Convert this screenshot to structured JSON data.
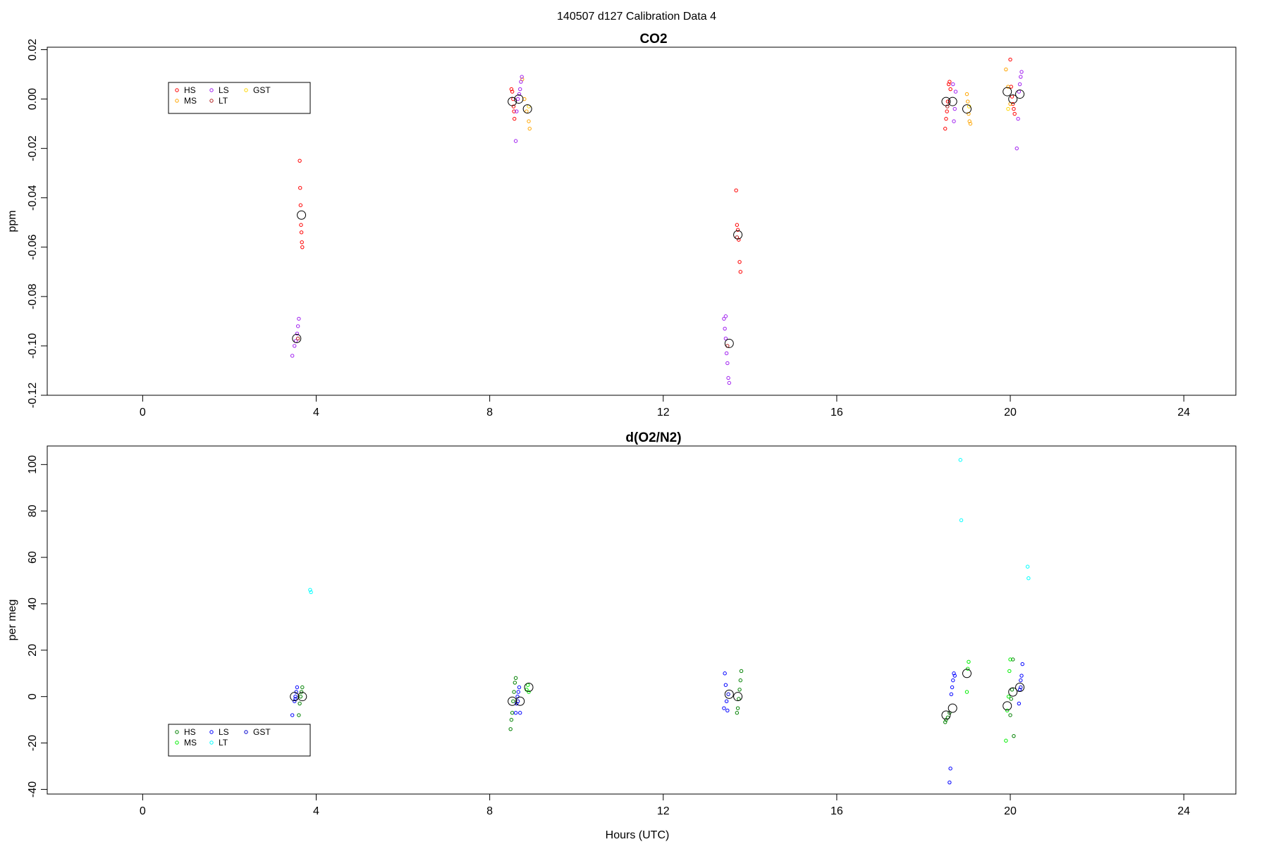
{
  "figure": {
    "title": "140507   d127   Calibration Data 4"
  },
  "chart_data": [
    {
      "type": "scatter",
      "title": "CO2",
      "xlabel": "",
      "ylabel": "ppm",
      "xlim": [
        -2.2,
        25.2
      ],
      "ylim": [
        -0.12,
        0.021
      ],
      "xticks": [
        0,
        4,
        8,
        12,
        16,
        20,
        24
      ],
      "yticks": [
        0.02,
        0.0,
        -0.02,
        -0.04,
        -0.06,
        -0.08,
        -0.1,
        -0.12
      ],
      "ytick_labels": [
        "0.02",
        "0.00",
        "-0.02",
        "-0.04",
        "-0.06",
        "-0.08",
        "-0.10",
        "-0.12"
      ],
      "grid": false,
      "legend_position": "top-left",
      "legend": [
        {
          "name": "HS",
          "color": "#ff0000"
        },
        {
          "name": "MS",
          "color": "#ffa500"
        },
        {
          "name": "LS",
          "color": "#a020f0"
        },
        {
          "name": "LT",
          "color": "#b22222"
        },
        {
          "name": "GST",
          "color": "#ffd700"
        }
      ],
      "series": [
        {
          "name": "HS",
          "color": "#ff0000",
          "points": [
            [
              3.62,
              -0.025
            ],
            [
              3.63,
              -0.036
            ],
            [
              3.64,
              -0.043
            ],
            [
              3.65,
              -0.051
            ],
            [
              3.66,
              -0.054
            ],
            [
              3.67,
              -0.058
            ],
            [
              3.68,
              -0.06
            ],
            [
              8.5,
              0.004
            ],
            [
              8.52,
              0.003
            ],
            [
              8.54,
              0.0
            ],
            [
              8.55,
              -0.003
            ],
            [
              8.56,
              -0.005
            ],
            [
              8.57,
              -0.008
            ],
            [
              13.68,
              -0.037
            ],
            [
              13.7,
              -0.051
            ],
            [
              13.72,
              -0.053
            ],
            [
              13.74,
              -0.057
            ],
            [
              13.76,
              -0.066
            ],
            [
              13.78,
              -0.07
            ],
            [
              18.5,
              -0.012
            ],
            [
              18.52,
              -0.008
            ],
            [
              18.54,
              -0.005
            ],
            [
              18.56,
              -0.001
            ],
            [
              18.58,
              0.006
            ],
            [
              18.6,
              0.007
            ],
            [
              18.62,
              0.004
            ],
            [
              20.0,
              0.016
            ],
            [
              20.02,
              0.005
            ],
            [
              20.04,
              0.001
            ],
            [
              20.06,
              -0.002
            ],
            [
              20.08,
              -0.004
            ],
            [
              20.1,
              -0.006
            ]
          ]
        },
        {
          "name": "MS",
          "color": "#ffa500",
          "points": [
            [
              8.75,
              0.008
            ],
            [
              8.8,
              0.0
            ],
            [
              8.85,
              -0.005
            ],
            [
              8.9,
              -0.009
            ],
            [
              8.92,
              -0.012
            ],
            [
              19.0,
              0.002
            ],
            [
              19.02,
              -0.001
            ],
            [
              19.04,
              -0.006
            ],
            [
              19.06,
              -0.009
            ],
            [
              19.08,
              -0.01
            ],
            [
              19.9,
              0.012
            ],
            [
              19.95,
              0.005
            ],
            [
              20.0,
              -0.002
            ]
          ]
        },
        {
          "name": "LS",
          "color": "#a020f0",
          "points": [
            [
              3.45,
              -0.104
            ],
            [
              3.5,
              -0.1
            ],
            [
              3.53,
              -0.098
            ],
            [
              3.56,
              -0.095
            ],
            [
              3.58,
              -0.092
            ],
            [
              3.6,
              -0.089
            ],
            [
              8.6,
              -0.017
            ],
            [
              8.62,
              -0.005
            ],
            [
              8.65,
              0.0
            ],
            [
              8.68,
              0.002
            ],
            [
              8.7,
              0.004
            ],
            [
              8.72,
              0.007
            ],
            [
              8.74,
              0.009
            ],
            [
              13.4,
              -0.089
            ],
            [
              13.42,
              -0.093
            ],
            [
              13.44,
              -0.097
            ],
            [
              13.46,
              -0.103
            ],
            [
              13.48,
              -0.107
            ],
            [
              13.5,
              -0.113
            ],
            [
              13.52,
              -0.115
            ],
            [
              13.44,
              -0.088
            ],
            [
              18.7,
              -0.009
            ],
            [
              18.72,
              -0.004
            ],
            [
              18.74,
              0.003
            ],
            [
              18.68,
              0.006
            ],
            [
              20.15,
              -0.02
            ],
            [
              20.18,
              -0.008
            ],
            [
              20.2,
              0.003
            ],
            [
              20.22,
              0.006
            ],
            [
              20.24,
              0.009
            ],
            [
              20.26,
              0.011
            ]
          ]
        },
        {
          "name": "LT",
          "color": "#b22222",
          "points": [
            [
              3.58,
              -0.097
            ],
            [
              13.48,
              -0.1
            ],
            [
              13.7,
              -0.056
            ],
            [
              18.55,
              -0.003
            ]
          ]
        },
        {
          "name": "GST",
          "color": "#ffd700",
          "points": [
            [
              8.9,
              -0.003
            ],
            [
              19.05,
              -0.003
            ],
            [
              19.95,
              -0.004
            ]
          ]
        }
      ],
      "means": [
        [
          3.55,
          -0.097
        ],
        [
          3.66,
          -0.047
        ],
        [
          8.52,
          -0.001
        ],
        [
          8.67,
          0.0
        ],
        [
          8.87,
          -0.004
        ],
        [
          13.52,
          -0.099
        ],
        [
          13.72,
          -0.055
        ],
        [
          18.52,
          -0.001
        ],
        [
          18.67,
          -0.001
        ],
        [
          19.0,
          -0.004
        ],
        [
          19.93,
          0.003
        ],
        [
          20.06,
          0.0
        ],
        [
          20.22,
          0.002
        ]
      ]
    },
    {
      "type": "scatter",
      "title": "d(O2/N2)",
      "xlabel": "Hours (UTC)",
      "ylabel": "per meg",
      "xlim": [
        -2.2,
        25.2
      ],
      "ylim": [
        -42,
        108
      ],
      "xticks": [
        0,
        4,
        8,
        12,
        16,
        20,
        24
      ],
      "yticks": [
        100,
        80,
        60,
        40,
        20,
        0,
        -20,
        -40
      ],
      "ytick_labels": [
        "100",
        "80",
        "60",
        "40",
        "20",
        "0",
        "-20",
        "-40"
      ],
      "grid": false,
      "legend_position": "bottom-left",
      "legend": [
        {
          "name": "HS",
          "color": "#008000"
        },
        {
          "name": "MS",
          "color": "#00ee00"
        },
        {
          "name": "LS",
          "color": "#0000ff"
        },
        {
          "name": "LT",
          "color": "#00ffff"
        },
        {
          "name": "GST",
          "color": "#0000cd"
        }
      ],
      "series": [
        {
          "name": "HS",
          "color": "#008000",
          "points": [
            [
              3.62,
              -3
            ],
            [
              3.64,
              0
            ],
            [
              3.66,
              2
            ],
            [
              3.68,
              4
            ],
            [
              3.6,
              -8
            ],
            [
              8.48,
              -14
            ],
            [
              8.5,
              -10
            ],
            [
              8.52,
              -7
            ],
            [
              8.54,
              -2
            ],
            [
              8.56,
              2
            ],
            [
              8.58,
              6
            ],
            [
              8.6,
              8
            ],
            [
              13.7,
              -7
            ],
            [
              13.72,
              -5
            ],
            [
              13.74,
              -1
            ],
            [
              13.76,
              3
            ],
            [
              13.78,
              7
            ],
            [
              13.8,
              11
            ],
            [
              18.5,
              -11
            ],
            [
              18.52,
              -10
            ],
            [
              18.56,
              -9
            ],
            [
              18.6,
              -7
            ],
            [
              20.0,
              -8
            ],
            [
              20.02,
              -1
            ],
            [
              20.04,
              3
            ],
            [
              20.06,
              16
            ],
            [
              20.08,
              -17
            ]
          ]
        },
        {
          "name": "MS",
          "color": "#00ee00",
          "points": [
            [
              8.85,
              3
            ],
            [
              8.88,
              5
            ],
            [
              8.9,
              2
            ],
            [
              19.0,
              2
            ],
            [
              19.02,
              12
            ],
            [
              19.04,
              15
            ],
            [
              19.9,
              -19
            ],
            [
              19.93,
              -6
            ],
            [
              19.96,
              0
            ],
            [
              19.98,
              11
            ],
            [
              20.0,
              16
            ]
          ]
        },
        {
          "name": "LS",
          "color": "#0000ff",
          "points": [
            [
              3.45,
              -8
            ],
            [
              3.5,
              -2
            ],
            [
              3.52,
              0
            ],
            [
              3.54,
              2
            ],
            [
              3.56,
              4
            ],
            [
              8.6,
              -7
            ],
            [
              8.62,
              -3
            ],
            [
              8.64,
              0
            ],
            [
              8.66,
              2
            ],
            [
              8.68,
              4
            ],
            [
              8.7,
              -7
            ],
            [
              13.4,
              -5
            ],
            [
              13.42,
              10
            ],
            [
              13.44,
              5
            ],
            [
              13.46,
              -2
            ],
            [
              13.48,
              -6
            ],
            [
              18.6,
              -37
            ],
            [
              18.62,
              -31
            ],
            [
              18.64,
              1
            ],
            [
              18.66,
              4
            ],
            [
              18.68,
              7
            ],
            [
              18.7,
              10
            ],
            [
              18.72,
              9
            ],
            [
              20.2,
              -3
            ],
            [
              20.22,
              3
            ],
            [
              20.24,
              7
            ],
            [
              20.26,
              9
            ],
            [
              20.28,
              14
            ]
          ]
        },
        {
          "name": "LT",
          "color": "#00ffff",
          "points": [
            [
              3.86,
              46
            ],
            [
              3.88,
              45
            ],
            [
              18.85,
              102
            ],
            [
              18.87,
              76
            ],
            [
              20.4,
              56
            ],
            [
              20.42,
              51
            ]
          ]
        },
        {
          "name": "GST",
          "color": "#0000cd",
          "points": [
            [
              3.52,
              -1
            ],
            [
              8.65,
              -2
            ],
            [
              13.5,
              1
            ],
            [
              20.24,
              4
            ]
          ]
        }
      ],
      "means": [
        [
          3.5,
          0
        ],
        [
          3.68,
          0
        ],
        [
          8.52,
          -2
        ],
        [
          8.7,
          -2
        ],
        [
          8.9,
          4
        ],
        [
          13.52,
          1
        ],
        [
          13.72,
          0
        ],
        [
          18.52,
          -8
        ],
        [
          18.67,
          -5
        ],
        [
          19.0,
          10
        ],
        [
          19.93,
          -4
        ],
        [
          20.06,
          2
        ],
        [
          20.22,
          4
        ]
      ]
    }
  ]
}
